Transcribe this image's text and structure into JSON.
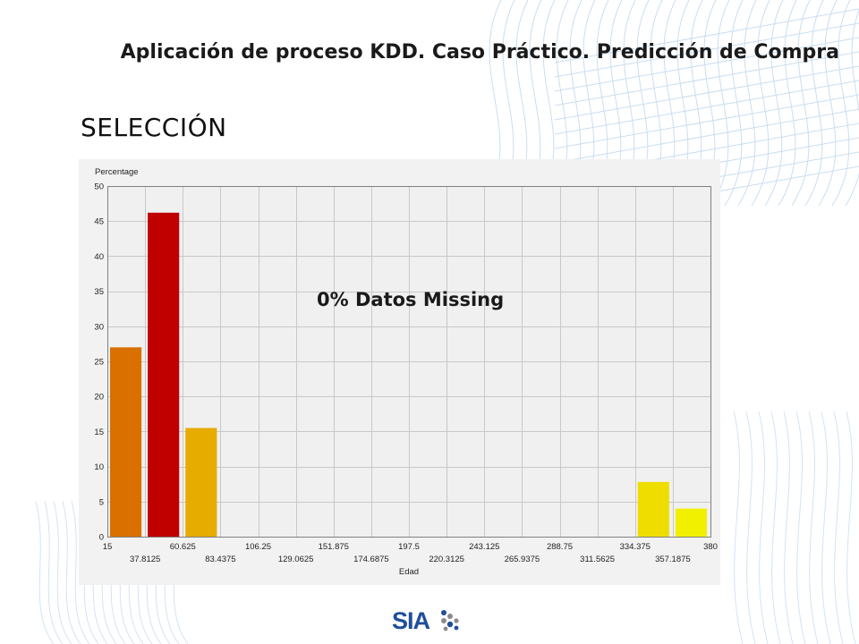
{
  "slide": {
    "title": "Aplicación de proceso KDD. Caso Práctico. Predicción de Compra",
    "section": "SELECCIÓN",
    "overlay_text": "0% Datos Missing",
    "logo_text": "SIA"
  },
  "chart_data": {
    "type": "bar",
    "title": "",
    "xlabel": "Edad",
    "ylabel": "Percentage",
    "ylim": [
      0,
      50
    ],
    "yticks": [
      0,
      5,
      10,
      15,
      20,
      25,
      30,
      35,
      40,
      45,
      50
    ],
    "xlim": [
      15,
      380
    ],
    "xticks_top": [
      "15",
      "60.625",
      "106.25",
      "151.875",
      "197.5",
      "243.125",
      "288.75",
      "334.375",
      "380"
    ],
    "xticks_bottom": [
      "37.8125",
      "83.4375",
      "129.0625",
      "174.6875",
      "220.3125",
      "265.9375",
      "311.5625",
      "357.1875"
    ],
    "grid": true,
    "legend": "none",
    "bins": [
      {
        "from": 15,
        "to": 37.8125,
        "value": 27,
        "color": "#d97000"
      },
      {
        "from": 37.8125,
        "to": 60.625,
        "value": 46.2,
        "color": "#c00000"
      },
      {
        "from": 60.625,
        "to": 83.4375,
        "value": 15.5,
        "color": "#e6ac00"
      },
      {
        "from": 334.375,
        "to": 357.1875,
        "value": 7.8,
        "color": "#efdd00"
      },
      {
        "from": 357.1875,
        "to": 380,
        "value": 4,
        "color": "#f0f000"
      }
    ]
  }
}
